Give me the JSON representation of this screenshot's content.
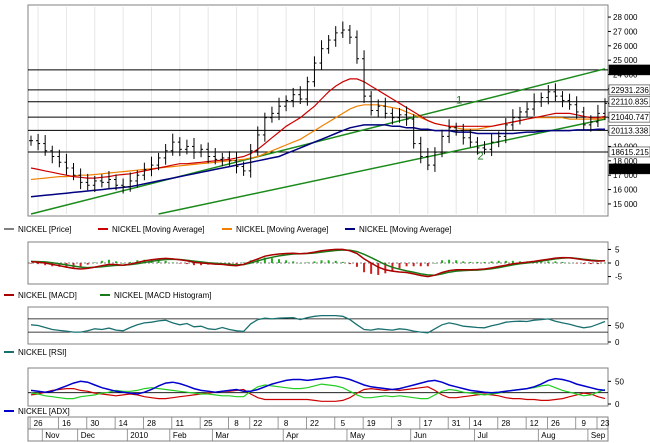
{
  "chart_data": {
    "type": "line",
    "instrument": "NICKEL",
    "price_panel": {
      "y_ticks": [
        "28 000",
        "27 000",
        "26 000",
        "25 000",
        "24 000",
        "23 000",
        "22 000",
        "21 000",
        "20 000",
        "19 000",
        "18 000",
        "17 000",
        "16 000",
        "15 000"
      ],
      "y_tick_values": [
        28000,
        27000,
        26000,
        25000,
        24000,
        23000,
        22000,
        21000,
        20000,
        19000,
        18000,
        17000,
        16000,
        15000
      ],
      "ylim": [
        14300,
        28700
      ],
      "price_labels": [
        {
          "text": "24322.350",
          "value": 24322.35,
          "color": "#ffffff",
          "bg": "#000000"
        },
        {
          "text": "22931.236",
          "value": 22931.236,
          "color": "#000000",
          "bg": "#ffffff"
        },
        {
          "text": "22110.835",
          "value": 22110.835,
          "color": "#000000",
          "bg": "#ffffff"
        },
        {
          "text": "21040.747",
          "value": 21040.747,
          "color": "#000000",
          "bg": "#ffffff"
        },
        {
          "text": "20113.338",
          "value": 20113.338,
          "color": "#000000",
          "bg": "#ffffff"
        },
        {
          "text": "18615.215",
          "value": 18615.215,
          "color": "#000000",
          "bg": "#ffffff"
        },
        {
          "text": "17438.118",
          "value": 17438.118,
          "color": "#ffffff",
          "bg": "#000000"
        }
      ],
      "horizontal_levels": [
        24322.35,
        22931.236,
        22110.835,
        21040.747,
        20113.338,
        18615.215
      ],
      "price_series": [
        19400,
        19200,
        18700,
        18300,
        17900,
        17500,
        17000,
        16500,
        16300,
        16600,
        16500,
        16700,
        16300,
        16200,
        16600,
        17000,
        17400,
        17700,
        18200,
        18700,
        19300,
        18800,
        19000,
        18600,
        18800,
        18300,
        18100,
        18200,
        18000,
        17600,
        17300,
        18700,
        19800,
        21000,
        21300,
        21800,
        22200,
        22600,
        22300,
        23500,
        24800,
        25800,
        26400,
        26900,
        27100,
        26600,
        25100,
        22500,
        21500,
        21800,
        21300,
        21000,
        21200,
        20900,
        19200,
        18300,
        17700,
        18600,
        19700,
        20300,
        20100,
        19600,
        19300,
        18900,
        18800,
        19300,
        19700,
        20500,
        21000,
        21400,
        21600,
        22100,
        22400,
        22800,
        22500,
        22200,
        21900,
        21400,
        20500,
        20700,
        21300,
        22000
      ],
      "ma_red": [
        17500,
        17400,
        17300,
        17200,
        17100,
        17000,
        16900,
        16850,
        16800,
        16800,
        16850,
        16900,
        17000,
        17050,
        17100,
        17200,
        17300,
        17400,
        17500,
        17600,
        17700,
        17800,
        17800,
        17850,
        17900,
        17950,
        18000,
        18050,
        18100,
        18200,
        18300,
        18500,
        18800,
        19200,
        19600,
        20000,
        20400,
        20700,
        21000,
        21400,
        21800,
        22300,
        22800,
        23200,
        23500,
        23700,
        23700,
        23500,
        23200,
        22900,
        22600,
        22300,
        22000,
        21700,
        21400,
        21100,
        20800,
        20600,
        20500,
        20400,
        20400,
        20400,
        20400,
        20400,
        20400,
        20400,
        20500,
        20600,
        20700,
        20800,
        20900,
        21000,
        21100,
        21200,
        21300,
        21300,
        21300,
        21200,
        21100,
        21000,
        21000,
        21100
      ],
      "ma_orange": [
        16700,
        16750,
        16800,
        16850,
        16900,
        16900,
        16950,
        17000,
        17000,
        17050,
        17100,
        17150,
        17200,
        17250,
        17300,
        17350,
        17400,
        17450,
        17500,
        17550,
        17600,
        17650,
        17700,
        17750,
        17800,
        17850,
        17900,
        17950,
        18000,
        18050,
        18100,
        18200,
        18300,
        18500,
        18700,
        18900,
        19100,
        19300,
        19500,
        19800,
        20100,
        20400,
        20700,
        21000,
        21300,
        21600,
        21800,
        21900,
        21900,
        21900,
        21800,
        21700,
        21600,
        21400,
        21200,
        21000,
        20800,
        20600,
        20500,
        20400,
        20300,
        20200,
        20200,
        20200,
        20300,
        20400,
        20500,
        20600,
        20700,
        20800,
        20900,
        21000,
        21000,
        21000,
        21000,
        21000,
        20900,
        20900,
        20900,
        20900,
        20900,
        21000
      ],
      "ma_blue": [
        15500,
        15550,
        15600,
        15650,
        15700,
        15750,
        15800,
        15850,
        15900,
        15950,
        16000,
        16050,
        16100,
        16150,
        16200,
        16300,
        16400,
        16500,
        16600,
        16700,
        16800,
        16900,
        17000,
        17100,
        17200,
        17300,
        17400,
        17500,
        17600,
        17700,
        17800,
        17900,
        18000,
        18100,
        18200,
        18300,
        18500,
        18700,
        18900,
        19100,
        19300,
        19500,
        19700,
        19900,
        20100,
        20300,
        20400,
        20500,
        20500,
        20500,
        20500,
        20400,
        20400,
        20300,
        20300,
        20200,
        20200,
        20100,
        20100,
        20100,
        20000,
        20000,
        20000,
        19900,
        19900,
        19900,
        19900,
        19900,
        19900,
        19950,
        20000,
        20000,
        20050,
        20100,
        20100,
        20100,
        20100,
        20150,
        20150,
        20150,
        20200,
        20200
      ],
      "trendlines": [
        {
          "color": "#1a8a1a",
          "from": [
            0,
            14300
          ],
          "to": [
            81,
            24400
          ]
        },
        {
          "color": "#1a8a1a",
          "from": [
            18,
            14300
          ],
          "to": [
            81,
            20900
          ]
        }
      ],
      "annotations": [
        {
          "text": "1",
          "x": 60,
          "y": 22000
        },
        {
          "text": "2",
          "x": 63,
          "y": 18100
        }
      ],
      "legend": [
        "NICKEL [Price]",
        "NICKEL [Moving Average]",
        "NICKEL [Moving Average]",
        "NICKEL [Moving Average]"
      ]
    },
    "macd_panel": {
      "y_ticks": [
        "5",
        "0",
        "-5"
      ],
      "y_tick_values": [
        5,
        0,
        -5
      ],
      "ylim": [
        -7,
        7
      ],
      "macd": [
        0.5,
        0.3,
        0,
        -0.5,
        -1,
        -1.5,
        -2,
        -2.2,
        -2,
        -1.5,
        -1,
        -0.5,
        -0.6,
        -0.8,
        -0.4,
        0.2,
        0.8,
        1.2,
        1.5,
        1.7,
        1.5,
        1.2,
        0.8,
        0.3,
        0,
        -0.2,
        -0.4,
        -0.5,
        -0.8,
        -1,
        -0.5,
        0.5,
        1.5,
        2.5,
        3,
        3.3,
        3.5,
        3.6,
        3.4,
        3.6,
        4,
        4.5,
        4.8,
        5,
        5,
        4.5,
        3.5,
        1.5,
        0,
        -1.5,
        -2.5,
        -3,
        -3.3,
        -3.5,
        -4,
        -4.6,
        -5,
        -4.5,
        -3.5,
        -2.8,
        -2.5,
        -2.5,
        -2.5,
        -2.4,
        -2.2,
        -1.8,
        -1.3,
        -0.8,
        -0.3,
        0,
        0.3,
        0.6,
        1,
        1.4,
        1.8,
        2,
        1.9,
        1.6,
        1.2,
        0.9,
        0.7,
        0.8
      ],
      "signal": [
        0.6,
        0.5,
        0.4,
        0.1,
        -0.3,
        -0.7,
        -1.1,
        -1.5,
        -1.7,
        -1.6,
        -1.4,
        -1.1,
        -0.9,
        -0.8,
        -0.6,
        -0.3,
        0.2,
        0.6,
        1,
        1.3,
        1.4,
        1.3,
        1,
        0.7,
        0.4,
        0.1,
        -0.1,
        -0.3,
        -0.5,
        -0.7,
        -0.6,
        0,
        0.8,
        1.5,
        2.1,
        2.6,
        3,
        3.3,
        3.4,
        3.5,
        3.7,
        4,
        4.3,
        4.6,
        4.8,
        4.7,
        4.2,
        3.2,
        2,
        0.7,
        -0.6,
        -1.6,
        -2.3,
        -2.9,
        -3.4,
        -4,
        -4.4,
        -4.5,
        -4,
        -3.4,
        -3,
        -2.8,
        -2.7,
        -2.6,
        -2.4,
        -2.1,
        -1.7,
        -1.2,
        -0.7,
        -0.3,
        0,
        0.3,
        0.7,
        1.1,
        1.5,
        1.8,
        1.9,
        1.7,
        1.4,
        1.1,
        0.9,
        0.8
      ],
      "legend": [
        "NICKEL [MACD]",
        "NICKEL [MACD Histogram]"
      ]
    },
    "rsi_panel": {
      "y_ticks": [
        "50",
        "0"
      ],
      "y_tick_values": [
        50,
        0
      ],
      "ylim": [
        0,
        100
      ],
      "levels": [
        70,
        30
      ],
      "rsi": [
        52,
        50,
        44,
        38,
        35,
        33,
        30,
        30,
        34,
        40,
        38,
        42,
        36,
        34,
        44,
        52,
        58,
        60,
        64,
        66,
        58,
        52,
        56,
        46,
        48,
        40,
        38,
        44,
        38,
        34,
        32,
        55,
        68,
        72,
        70,
        72,
        73,
        74,
        68,
        74,
        78,
        80,
        80,
        80,
        78,
        68,
        52,
        38,
        36,
        40,
        38,
        36,
        40,
        38,
        33,
        30,
        28,
        40,
        52,
        58,
        54,
        48,
        46,
        44,
        43,
        49,
        54,
        60,
        62,
        63,
        62,
        66,
        68,
        70,
        63,
        58,
        54,
        48,
        43,
        46,
        54,
        62
      ],
      "legend": [
        "NICKEL [RSI]"
      ]
    },
    "adx_panel": {
      "y_ticks": [
        "50",
        "0"
      ],
      "y_tick_values": [
        50,
        0
      ],
      "ylim": [
        0,
        75
      ],
      "level": 25,
      "adx": [
        30,
        28,
        26,
        28,
        34,
        40,
        46,
        50,
        48,
        42,
        36,
        32,
        28,
        26,
        24,
        22,
        26,
        32,
        40,
        46,
        48,
        45,
        40,
        34,
        30,
        28,
        26,
        28,
        30,
        32,
        28,
        28,
        32,
        38,
        44,
        48,
        52,
        54,
        54,
        52,
        54,
        56,
        58,
        60,
        58,
        54,
        48,
        42,
        38,
        36,
        34,
        32,
        34,
        38,
        42,
        46,
        50,
        52,
        48,
        42,
        38,
        34,
        30,
        28,
        26,
        25,
        26,
        28,
        30,
        32,
        34,
        38,
        44,
        52,
        56,
        54,
        50,
        44,
        40,
        36,
        32,
        30
      ],
      "plus_di": [
        24,
        22,
        18,
        16,
        14,
        12,
        12,
        16,
        18,
        20,
        24,
        26,
        30,
        28,
        28,
        30,
        34,
        36,
        34,
        32,
        30,
        28,
        26,
        24,
        22,
        22,
        20,
        18,
        18,
        16,
        16,
        28,
        38,
        42,
        40,
        38,
        36,
        34,
        34,
        36,
        40,
        44,
        42,
        40,
        36,
        28,
        20,
        14,
        14,
        16,
        18,
        16,
        18,
        16,
        14,
        12,
        12,
        20,
        28,
        32,
        30,
        26,
        24,
        22,
        20,
        22,
        24,
        28,
        30,
        32,
        34,
        36,
        40,
        42,
        36,
        30,
        26,
        22,
        18,
        20,
        26,
        32
      ],
      "minus_di": [
        20,
        22,
        26,
        30,
        32,
        34,
        34,
        30,
        28,
        24,
        22,
        20,
        18,
        20,
        22,
        20,
        16,
        14,
        12,
        12,
        14,
        16,
        18,
        20,
        22,
        24,
        26,
        28,
        28,
        30,
        32,
        22,
        14,
        10,
        10,
        10,
        10,
        10,
        10,
        10,
        8,
        6,
        6,
        6,
        8,
        14,
        24,
        32,
        34,
        32,
        30,
        32,
        30,
        32,
        34,
        36,
        38,
        30,
        20,
        14,
        14,
        16,
        18,
        20,
        22,
        20,
        18,
        14,
        12,
        12,
        10,
        10,
        8,
        8,
        10,
        12,
        16,
        20,
        24,
        22,
        16,
        12
      ],
      "legend": [
        "NICKEL [ADX]"
      ]
    },
    "x_axis": {
      "top_labels": [
        {
          "text": "26",
          "idx": 1
        },
        {
          "text": "16",
          "idx": 5
        },
        {
          "text": "30",
          "idx": 9
        },
        {
          "text": "14",
          "idx": 13
        },
        {
          "text": "28",
          "idx": 17
        },
        {
          "text": "11",
          "idx": 21
        },
        {
          "text": "25",
          "idx": 25
        },
        {
          "text": "8",
          "idx": 29
        },
        {
          "text": "22",
          "idx": 32
        },
        {
          "text": "8",
          "idx": 36
        },
        {
          "text": "22",
          "idx": 40
        },
        {
          "text": "5",
          "idx": 44
        },
        {
          "text": "19",
          "idx": 48
        },
        {
          "text": "3",
          "idx": 52
        },
        {
          "text": "17",
          "idx": 56
        },
        {
          "text": "31",
          "idx": 60
        },
        {
          "text": "14",
          "idx": 63
        },
        {
          "text": "28",
          "idx": 67
        },
        {
          "text": "12",
          "idx": 71
        },
        {
          "text": "26",
          "idx": 74
        },
        {
          "text": "9",
          "idx": 78
        },
        {
          "text": "23",
          "idx": 81
        }
      ],
      "bottom_labels": [
        {
          "text": "Nov",
          "idx": 3
        },
        {
          "text": "Dec",
          "idx": 8
        },
        {
          "text": "2010",
          "idx": 15
        },
        {
          "text": "Feb",
          "idx": 21
        },
        {
          "text": "Mar",
          "idx": 27
        },
        {
          "text": "Apr",
          "idx": 37
        },
        {
          "text": "May",
          "idx": 46
        },
        {
          "text": "Jun",
          "idx": 55
        },
        {
          "text": "Jul",
          "idx": 64
        },
        {
          "text": "Aug",
          "idx": 73
        },
        {
          "text": "Sep",
          "idx": 80
        }
      ]
    },
    "colors": {
      "price": "#000000",
      "ma_red": "#cc0000",
      "ma_orange": "#f08000",
      "ma_blue": "#000080",
      "trend": "#1a8a1a",
      "macd": "#aa0000",
      "signal": "#1a7a1a",
      "rsi": "#1a7070",
      "adx": "#0000cc",
      "plus_di": "#22cc22",
      "minus_di": "#cc0000"
    }
  }
}
